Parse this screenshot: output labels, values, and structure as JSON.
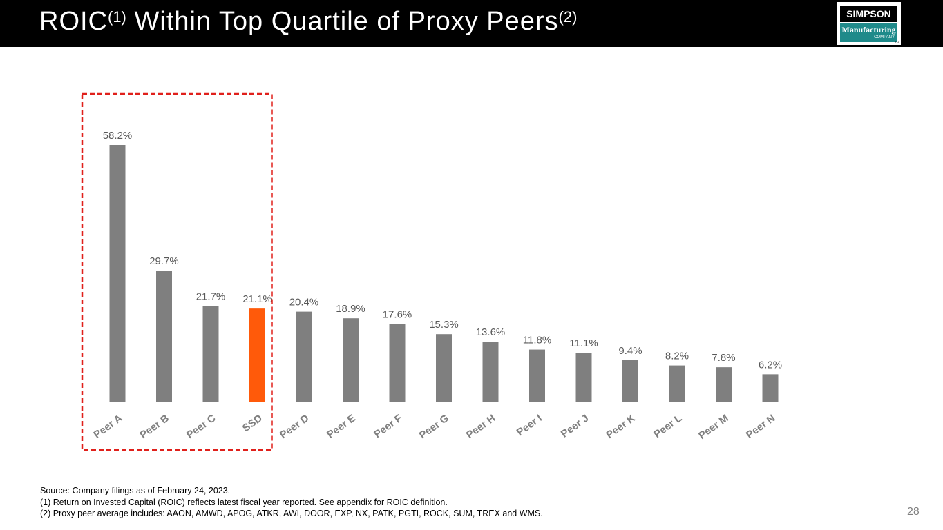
{
  "header": {
    "title_main": "ROIC",
    "title_sup1": "(1)",
    "title_mid": " Within Top Quartile of Proxy Peers",
    "title_sup2": "(2)"
  },
  "logo": {
    "top_text": "SIMPSON",
    "mid_text": "Manufacturing",
    "bottom_text": "COMPANY",
    "tm": "TM"
  },
  "chart_data": {
    "type": "bar",
    "title": "",
    "xlabel": "",
    "ylabel": "",
    "categories": [
      "Peer A",
      "Peer B",
      "Peer C",
      "SSD",
      "Peer D",
      "Peer E",
      "Peer F",
      "Peer G",
      "Peer H",
      "Peer I",
      "Peer J",
      "Peer K",
      "Peer L",
      "Peer M",
      "Peer N"
    ],
    "values": [
      58.2,
      29.7,
      21.7,
      21.1,
      20.4,
      18.9,
      17.6,
      15.3,
      13.6,
      11.8,
      11.1,
      9.4,
      8.2,
      7.8,
      6.2
    ],
    "value_labels": [
      "58.2%",
      "29.7%",
      "21.7%",
      "21.1%",
      "20.4%",
      "18.9%",
      "17.6%",
      "15.3%",
      "13.6%",
      "11.8%",
      "11.1%",
      "9.4%",
      "8.2%",
      "7.8%",
      "6.2%"
    ],
    "ylim": [
      0,
      65
    ],
    "highlight_category": "SSD",
    "bar_color": "#7f7f7f",
    "highlight_color": "#ff5a0a",
    "label_color": "#595959",
    "axis_color": "#d9d9d9",
    "top_quartile_box": {
      "first_category": "Peer A",
      "last_category": "SSD",
      "color": "#e0201b"
    }
  },
  "footnotes": {
    "source": "Source: Company filings as of February 24, 2023.",
    "note1": "(1)  Return on Invested Capital (ROIC) reflects latest fiscal year reported. See appendix for ROIC definition.",
    "note2": "(2)  Proxy peer average includes: AAON, AMWD, APOG, ATKR, AWI, DOOR, EXP, NX, PATK, PGTI, ROCK, SUM, TREX and WMS."
  },
  "page_number": "28"
}
